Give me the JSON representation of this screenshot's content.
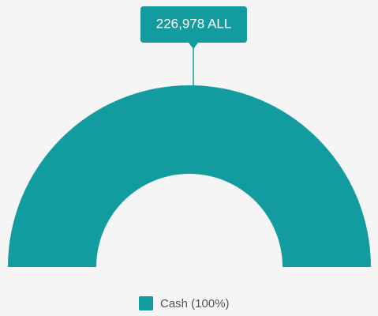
{
  "chart_data": {
    "type": "pie",
    "style": "half-donut",
    "categories": [
      "Cash"
    ],
    "values": [
      226978
    ],
    "value_labels": [
      "226,978 ALL"
    ],
    "legend_labels": [
      "Cash (100%)"
    ],
    "colors": [
      "#139ca0"
    ],
    "legend": "bottom"
  }
}
